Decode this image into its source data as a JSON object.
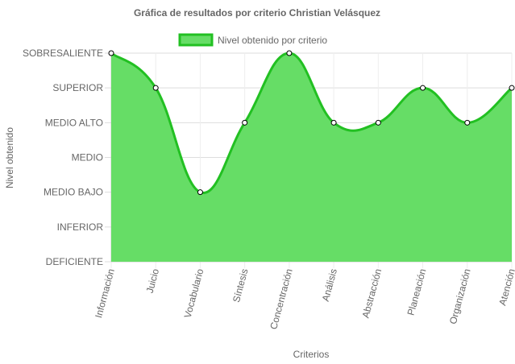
{
  "chart_data": {
    "type": "area",
    "title": "Gráfica de resultados por criterio Christian Velásquez",
    "xlabel": "Criterios",
    "ylabel": "Nivel obtenido",
    "levels": [
      "DEFICIENTE",
      "INFERIOR",
      "MEDIO BAJO",
      "MEDIO",
      "MEDIO ALTO",
      "SUPERIOR",
      "SOBRESALIENTE"
    ],
    "categories": [
      "Información",
      "Juicio",
      "Vocabulario",
      "Síntesis",
      "Concentración",
      "Análisis",
      "Abstracción",
      "Planeación",
      "Organización",
      "Atención"
    ],
    "series": [
      {
        "name": "Nivel obtenido por criterio",
        "values": [
          "SOBRESALIENTE",
          "SUPERIOR",
          "MEDIO BAJO",
          "MEDIO ALTO",
          "SOBRESALIENTE",
          "MEDIO ALTO",
          "MEDIO ALTO",
          "SUPERIOR",
          "MEDIO ALTO",
          "SUPERIOR"
        ],
        "fill_color": "#66dd66",
        "line_color": "#22c022"
      }
    ],
    "legend_position": "top",
    "grid": true
  }
}
